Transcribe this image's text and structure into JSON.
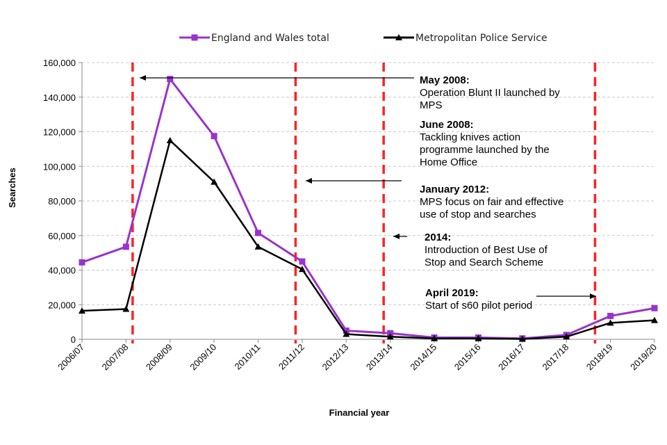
{
  "chart_data": {
    "type": "line",
    "title": "",
    "xlabel": "Financial year",
    "ylabel": "Searches",
    "ylim": [
      0,
      160000
    ],
    "yticks": [
      "0",
      "20,000",
      "40,000",
      "60,000",
      "80,000",
      "100,000",
      "120,000",
      "140,000",
      "160,000"
    ],
    "categories": [
      "2006/07",
      "2007/08",
      "2008/09",
      "2009/10",
      "2010/11",
      "2011/12",
      "2012/13",
      "2013/14",
      "2014/15",
      "2015/16",
      "2016/17",
      "2017/18",
      "2018/19",
      "2019/20"
    ],
    "grid": "horizontal dashed",
    "legend_position": "top",
    "series": [
      {
        "name": "England and Wales total",
        "color": "#9933cc",
        "marker": "square",
        "values": [
          44500,
          53500,
          150500,
          117500,
          61500,
          45000,
          5000,
          3500,
          1000,
          1000,
          500,
          2500,
          13500,
          18000
        ]
      },
      {
        "name": "Metropolitan Police Service",
        "color": "#000000",
        "marker": "triangle",
        "values": [
          16500,
          17500,
          115000,
          91000,
          53500,
          40500,
          3000,
          1500,
          500,
          500,
          200,
          1500,
          9500,
          11000
        ]
      }
    ],
    "event_lines": [
      {
        "x_category_position": 1.15,
        "color": "#ff2222"
      },
      {
        "x_category_position": 4.85,
        "color": "#ff2222"
      },
      {
        "x_category_position": 6.85,
        "color": "#ff2222"
      },
      {
        "x_category_position": 11.65,
        "color": "#ff2222"
      }
    ],
    "annotations": [
      {
        "heading": "May 2008:",
        "text": [
          "Operation Blunt II launched by",
          "MPS"
        ]
      },
      {
        "heading": "June 2008:",
        "text": [
          "Tackling knives action",
          "programme launched by the",
          "Home Office"
        ]
      },
      {
        "heading": "January 2012:",
        "text": [
          "MPS focus on fair and effective",
          "use of stop and searches"
        ]
      },
      {
        "heading": "2014:",
        "text": [
          "Introduction of Best Use of",
          "Stop and Search Scheme"
        ]
      },
      {
        "heading": "April 2019:",
        "text": [
          "Start of s60 pilot period"
        ]
      }
    ]
  }
}
